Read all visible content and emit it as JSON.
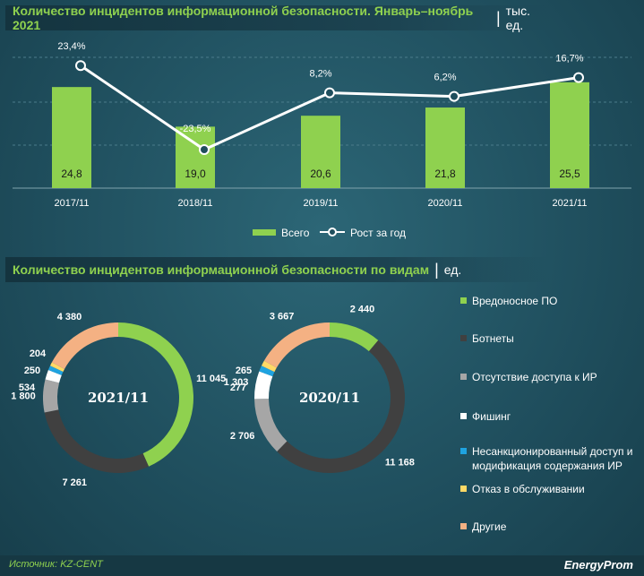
{
  "chart_data": [
    {
      "type": "bar",
      "title": "Количество инцидентов информационной безопасности. Январь–ноябрь 2021",
      "unit": "тыс. ед.",
      "categories": [
        "2017/11",
        "2018/11",
        "2019/11",
        "2020/11",
        "2021/11"
      ],
      "series": [
        {
          "name": "Всего",
          "type": "bar",
          "values": [
            24.8,
            19.0,
            20.6,
            21.8,
            25.5
          ],
          "labels": [
            "24,8",
            "19,0",
            "20,6",
            "21,8",
            "25,5"
          ]
        },
        {
          "name": "Рост за год",
          "type": "line",
          "values": [
            23.4,
            -23.5,
            8.2,
            6.2,
            16.7
          ],
          "labels": [
            "23,4%",
            "-23,5%",
            "8,2%",
            "6,2%",
            "16,7%"
          ]
        }
      ],
      "legend": [
        "Всего",
        "Рост за год"
      ]
    },
    {
      "type": "pie",
      "title": "Количество инцидентов информационной безопасности по видам",
      "unit": "ед.",
      "categories": [
        "Вредоносное ПО",
        "Ботнеты",
        "Отсутствие доступа к ИР",
        "Фишинг",
        "Несанкционированный доступ и модификация содержания ИР",
        "Отказ в обслуживании",
        "Другие"
      ],
      "charts": [
        {
          "label": "2021/11",
          "values": [
            11045,
            7261,
            1800,
            534,
            250,
            204,
            4380
          ],
          "labels": [
            "11 045",
            "7 261",
            "1 800",
            "534",
            "250",
            "204",
            "4 380"
          ]
        },
        {
          "label": "2020/11",
          "values": [
            2440,
            11168,
            2706,
            1303,
            277,
            265,
            3667
          ],
          "labels": [
            "2 440",
            "11 168",
            "2 706",
            "1 303",
            "277",
            "265",
            "3 667"
          ]
        }
      ]
    }
  ],
  "titles": {
    "chart1": "Количество инцидентов информационной безопасности. Январь–ноябрь 2021",
    "chart1_unit": "тыс. ед.",
    "chart2": "Количество инцидентов информационной безопасности по видам",
    "chart2_unit": "ед."
  },
  "legend1": {
    "bars": "Всего",
    "line": "Рост за год"
  },
  "legend2": [
    {
      "label": "Вредоносное ПО",
      "color": "#8fd14f"
    },
    {
      "label": "Ботнеты",
      "color": "#404040"
    },
    {
      "label": "Отсутствие доступа к ИР",
      "color": "#a6a6a6"
    },
    {
      "label": "Фишинг",
      "color": "#ffffff"
    },
    {
      "label": "Несанкционированный доступ и модификация содержания ИР",
      "color": "#1fa3e0"
    },
    {
      "label": "Отказ в обслуживании",
      "color": "#ffd966"
    },
    {
      "label": "Другие",
      "color": "#f4b183"
    }
  ],
  "footer": {
    "source": "Источник: KZ-CENT",
    "logo": "EnergyProm"
  }
}
